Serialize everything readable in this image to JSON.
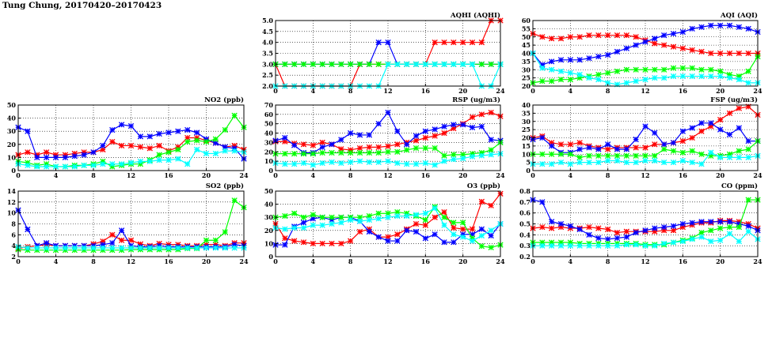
{
  "page": {
    "title": "Tung Chung, 20170420–20170423"
  },
  "colors": {
    "red": "#ff0000",
    "blue": "#0000ff",
    "green": "#00ff00",
    "cyan": "#00ffff",
    "grid": "#000000"
  },
  "chart_data": [
    {
      "id": "aqhi",
      "type": "line",
      "title": "AQHI (AQHI)",
      "xlim": [
        0,
        24
      ],
      "xticks": [
        0,
        4,
        8,
        12,
        16,
        20,
        24
      ],
      "ylim": [
        2.0,
        5.0
      ],
      "yticks": [
        "2.0",
        "2.5",
        "3.0",
        "3.5",
        "4.0",
        "4.5",
        "5.0"
      ],
      "grid": true,
      "series": [
        {
          "color": "red",
          "values": [
            3,
            2,
            2,
            2,
            2,
            2,
            2,
            2,
            2,
            3,
            3,
            3,
            3,
            3,
            3,
            3,
            3,
            4,
            4,
            4,
            4,
            4,
            4,
            5,
            5
          ]
        },
        {
          "color": "blue",
          "values": [
            3,
            3,
            3,
            3,
            3,
            3,
            3,
            3,
            3,
            3,
            3,
            4,
            4,
            3,
            3,
            3,
            3,
            3,
            3,
            3,
            3,
            3,
            3,
            3,
            3
          ]
        },
        {
          "color": "green",
          "values": [
            3,
            3,
            3,
            3,
            3,
            3,
            3,
            3,
            3,
            3,
            3,
            3,
            3,
            3,
            3,
            3,
            3,
            3,
            3,
            3,
            3,
            3,
            3,
            3,
            3
          ]
        },
        {
          "color": "cyan",
          "values": [
            2,
            2,
            2,
            2,
            2,
            2,
            2,
            2,
            2,
            2,
            2,
            2,
            3,
            3,
            3,
            3,
            3,
            3,
            3,
            3,
            3,
            3,
            2,
            2,
            3
          ]
        }
      ]
    },
    {
      "id": "aqi",
      "type": "line",
      "title": "AQI (AQI)",
      "xlim": [
        0,
        24
      ],
      "xticks": [
        0,
        4,
        8,
        12,
        16,
        20,
        24
      ],
      "ylim": [
        20,
        60
      ],
      "yticks": [
        "20",
        "25",
        "30",
        "35",
        "40",
        "45",
        "50",
        "55",
        "60"
      ],
      "grid": true,
      "series": [
        {
          "color": "red",
          "values": [
            52,
            50,
            49,
            49,
            50,
            50,
            51,
            51,
            51,
            51,
            51,
            50,
            48,
            46,
            45,
            44,
            43,
            42,
            41,
            40,
            40,
            40,
            40,
            40,
            40
          ]
        },
        {
          "color": "blue",
          "values": [
            40,
            33,
            35,
            36,
            36,
            36,
            37,
            38,
            39,
            41,
            43,
            45,
            47,
            49,
            51,
            52,
            53,
            55,
            56,
            57,
            57,
            57,
            56,
            55,
            53
          ]
        },
        {
          "color": "green",
          "values": [
            22,
            23,
            23,
            24,
            24,
            25,
            26,
            27,
            28,
            29,
            30,
            30,
            30,
            30,
            30,
            31,
            31,
            31,
            30,
            30,
            29,
            27,
            26,
            29,
            38
          ]
        },
        {
          "color": "cyan",
          "values": [
            40,
            31,
            30,
            29,
            28,
            27,
            25,
            24,
            22,
            21,
            22,
            23,
            24,
            25,
            25,
            26,
            26,
            26,
            26,
            26,
            26,
            25,
            24,
            22,
            22
          ]
        }
      ]
    },
    {
      "id": "no2",
      "type": "line",
      "title": "NO2 (ppb)",
      "xlim": [
        0,
        24
      ],
      "xticks": [
        0,
        4,
        8,
        12,
        16,
        20,
        24
      ],
      "ylim": [
        0,
        50
      ],
      "yticks": [
        "0",
        "10",
        "20",
        "30",
        "40",
        "50"
      ],
      "grid": true,
      "series": [
        {
          "color": "red",
          "values": [
            12,
            14,
            12,
            14,
            12,
            12,
            13,
            14,
            14,
            16,
            22,
            19,
            19,
            18,
            17,
            19,
            15,
            18,
            25,
            25,
            23,
            21,
            18,
            19,
            16
          ]
        },
        {
          "color": "blue",
          "values": [
            33,
            30,
            10,
            10,
            10,
            10,
            11,
            12,
            14,
            19,
            31,
            35,
            34,
            26,
            26,
            28,
            29,
            30,
            31,
            29,
            24,
            21,
            18,
            17,
            9
          ]
        },
        {
          "color": "green",
          "values": [
            7,
            6,
            4,
            5,
            3,
            3,
            4,
            4,
            5,
            7,
            3,
            4,
            5,
            5,
            8,
            12,
            14,
            16,
            22,
            23,
            22,
            24,
            31,
            42,
            33
          ]
        },
        {
          "color": "cyan",
          "values": [
            5,
            4,
            3,
            3,
            3,
            3,
            3,
            4,
            4,
            5,
            5,
            5,
            6,
            7,
            7,
            8,
            8,
            9,
            5,
            16,
            13,
            13,
            15,
            15,
            14
          ]
        }
      ]
    },
    {
      "id": "rsp",
      "type": "line",
      "title": "RSP (ug/m3)",
      "xlim": [
        0,
        24
      ],
      "xticks": [
        0,
        4,
        8,
        12,
        16,
        20,
        24
      ],
      "ylim": [
        0,
        70
      ],
      "yticks": [
        "0",
        "10",
        "20",
        "30",
        "40",
        "50",
        "60",
        "70"
      ],
      "grid": true,
      "series": [
        {
          "color": "red",
          "values": [
            31,
            31,
            29,
            28,
            27,
            30,
            28,
            23,
            22,
            24,
            25,
            25,
            26,
            28,
            30,
            32,
            35,
            37,
            40,
            45,
            50,
            57,
            60,
            62,
            58
          ]
        },
        {
          "color": "blue",
          "values": [
            32,
            35,
            27,
            19,
            19,
            25,
            28,
            33,
            40,
            38,
            38,
            50,
            62,
            42,
            28,
            37,
            42,
            44,
            47,
            49,
            49,
            46,
            47,
            33,
            32
          ]
        },
        {
          "color": "green",
          "values": [
            18,
            18,
            18,
            18,
            18,
            19,
            19,
            19,
            19,
            19,
            19,
            19,
            20,
            20,
            22,
            24,
            24,
            24,
            16,
            17,
            17,
            18,
            19,
            22,
            30
          ]
        },
        {
          "color": "cyan",
          "values": [
            8,
            7,
            7,
            8,
            6,
            8,
            9,
            8,
            9,
            10,
            9,
            9,
            10,
            8,
            7,
            7,
            8,
            6,
            10,
            12,
            13,
            15,
            16,
            17,
            18
          ]
        }
      ]
    },
    {
      "id": "fsp",
      "type": "line",
      "title": "FSP (ug/m3)",
      "xlim": [
        0,
        24
      ],
      "xticks": [
        0,
        4,
        8,
        12,
        16,
        20,
        24
      ],
      "ylim": [
        0,
        40
      ],
      "yticks": [
        "0",
        "5",
        "10",
        "15",
        "20",
        "25",
        "30",
        "35",
        "40"
      ],
      "grid": true,
      "series": [
        {
          "color": "red",
          "values": [
            20,
            21,
            17,
            16,
            16,
            17,
            15,
            14,
            13,
            14,
            14,
            14,
            14,
            16,
            16,
            17,
            18,
            20,
            24,
            27,
            31,
            35,
            38,
            39,
            34
          ]
        },
        {
          "color": "blue",
          "values": [
            19,
            20,
            15,
            11,
            11,
            13,
            14,
            13,
            16,
            13,
            13,
            19,
            27,
            23,
            16,
            17,
            24,
            26,
            29,
            29,
            25,
            22,
            26,
            18,
            18
          ]
        },
        {
          "color": "green",
          "values": [
            10,
            10,
            10,
            10,
            10,
            8,
            9,
            9,
            9,
            9,
            9,
            9,
            9,
            9,
            13,
            12,
            11,
            12,
            10,
            9,
            9,
            10,
            12,
            13,
            18
          ]
        },
        {
          "color": "cyan",
          "values": [
            4,
            4,
            4,
            5,
            4,
            5,
            5,
            5,
            6,
            6,
            5,
            5,
            6,
            6,
            5,
            5,
            6,
            5,
            4,
            11,
            8,
            8,
            8,
            8,
            9
          ]
        }
      ]
    },
    {
      "id": "so2",
      "type": "line",
      "title": "SO2 (ppb)",
      "xlim": [
        0,
        24
      ],
      "xticks": [
        0,
        4,
        8,
        12,
        16,
        20,
        24
      ],
      "ylim": [
        2,
        14
      ],
      "yticks": [
        "2",
        "4",
        "6",
        "8",
        "10",
        "12",
        "14"
      ],
      "grid": true,
      "series": [
        {
          "color": "red",
          "values": [
            3.5,
            3.8,
            4,
            4.2,
            4,
            4,
            4,
            4,
            4.3,
            4.8,
            6,
            5,
            5,
            4.3,
            4,
            4.4,
            4.2,
            4.2,
            4,
            4,
            4.2,
            4.2,
            4,
            4.5,
            4.5
          ]
        },
        {
          "color": "blue",
          "values": [
            10.5,
            7,
            4,
            4.5,
            4,
            4,
            4,
            4,
            4,
            4.2,
            4.5,
            6.8,
            4,
            3.8,
            3.8,
            4,
            3.8,
            3.8,
            3.8,
            3.8,
            3.8,
            3.8,
            3.8,
            4.2,
            4
          ]
        },
        {
          "color": "green",
          "values": [
            3.3,
            3.2,
            3.2,
            3.2,
            3.2,
            3.2,
            3.2,
            3.2,
            3.2,
            3.2,
            3.2,
            3.2,
            3.3,
            3.3,
            3.3,
            3.3,
            3.3,
            3.3,
            3.5,
            3.5,
            5,
            5,
            6.5,
            12.3,
            11
          ]
        },
        {
          "color": "cyan",
          "values": [
            3.8,
            3.6,
            3.6,
            3.6,
            3.6,
            3.6,
            3.6,
            3.6,
            3.6,
            3.6,
            3.6,
            3.6,
            3.6,
            3.6,
            3.6,
            3.6,
            3.6,
            3.6,
            3.6,
            3.6,
            3.6,
            3.6,
            3.6,
            3.6,
            3.6
          ]
        }
      ]
    },
    {
      "id": "o3",
      "type": "line",
      "title": "O3 (ppb)",
      "xlim": [
        0,
        24
      ],
      "xticks": [
        0,
        4,
        8,
        12,
        16,
        20,
        24
      ],
      "ylim": [
        0,
        50
      ],
      "yticks": [
        "0",
        "10",
        "20",
        "30",
        "40",
        "50"
      ],
      "grid": true,
      "series": [
        {
          "color": "red",
          "values": [
            25,
            14,
            12,
            11,
            10,
            10,
            10,
            10,
            12,
            19,
            21,
            15,
            15,
            17,
            21,
            25,
            24,
            30,
            34,
            22,
            21,
            21,
            42,
            39,
            48
          ]
        },
        {
          "color": "blue",
          "values": [
            9,
            9,
            23,
            26,
            29,
            30,
            28,
            30,
            30,
            27,
            19,
            15,
            12,
            12,
            20,
            19,
            14,
            17,
            11,
            11,
            17,
            17,
            21,
            16,
            25
          ]
        },
        {
          "color": "green",
          "values": [
            30,
            31,
            33,
            30,
            32,
            30,
            30,
            30,
            30,
            30,
            31,
            33,
            33,
            34,
            33,
            31,
            28,
            38,
            30,
            26,
            26,
            14,
            8,
            7,
            9
          ]
        },
        {
          "color": "cyan",
          "values": [
            22,
            21,
            22,
            22,
            24,
            24,
            25,
            26,
            28,
            27,
            28,
            29,
            30,
            31,
            31,
            32,
            33,
            37,
            24,
            17,
            15,
            12,
            16,
            20,
            25
          ]
        }
      ]
    },
    {
      "id": "co",
      "type": "line",
      "title": "CO (ppm)",
      "xlim": [
        0,
        24
      ],
      "xticks": [
        0,
        4,
        8,
        12,
        16,
        20,
        24
      ],
      "ylim": [
        0.2,
        0.8
      ],
      "yticks": [
        "0.2",
        "0.3",
        "0.4",
        "0.5",
        "0.6",
        "0.7",
        "0.8"
      ],
      "grid": true,
      "series": [
        {
          "color": "red",
          "values": [
            0.46,
            0.47,
            0.46,
            0.47,
            0.46,
            0.46,
            0.47,
            0.46,
            0.45,
            0.42,
            0.43,
            0.43,
            0.43,
            0.43,
            0.44,
            0.44,
            0.47,
            0.49,
            0.51,
            0.51,
            0.53,
            0.53,
            0.52,
            0.5,
            0.46
          ]
        },
        {
          "color": "blue",
          "values": [
            0.72,
            0.7,
            0.52,
            0.5,
            0.48,
            0.45,
            0.4,
            0.37,
            0.36,
            0.37,
            0.38,
            0.42,
            0.44,
            0.46,
            0.47,
            0.48,
            0.5,
            0.51,
            0.52,
            0.52,
            0.52,
            0.52,
            0.5,
            0.48,
            0.44
          ]
        },
        {
          "color": "green",
          "values": [
            0.33,
            0.33,
            0.33,
            0.33,
            0.33,
            0.32,
            0.32,
            0.32,
            0.32,
            0.32,
            0.32,
            0.32,
            0.31,
            0.31,
            0.31,
            0.33,
            0.35,
            0.37,
            0.42,
            0.44,
            0.46,
            0.47,
            0.47,
            0.72,
            0.72
          ]
        },
        {
          "color": "cyan",
          "values": [
            0.3,
            0.3,
            0.3,
            0.3,
            0.3,
            0.3,
            0.3,
            0.3,
            0.3,
            0.3,
            0.31,
            0.31,
            0.3,
            0.3,
            0.32,
            0.33,
            0.34,
            0.36,
            0.38,
            0.34,
            0.35,
            0.41,
            0.34,
            0.43,
            0.36
          ]
        }
      ]
    }
  ]
}
